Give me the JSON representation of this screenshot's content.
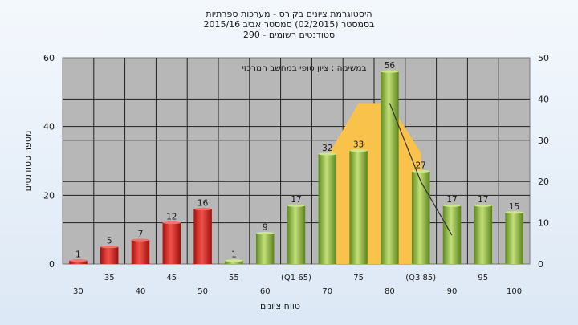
{
  "chart_data": {
    "type": "bar",
    "title": "היסטוגרמת ציונים בקורס - מערכות ספרתיות",
    "subtitle": "בסמסטר (02/2015) סמסטר אביב 2015/16",
    "subtitle2": "סטודנטים רשומים - 290",
    "annotation": "במשימה : ציון סופי במחשב המרכזי",
    "xlabel": "טווח ציונים",
    "ylabel": "מספר סטודנטים",
    "ylim": [
      0,
      60
    ],
    "y_ticks": [
      "0",
      "20",
      "40",
      "60"
    ],
    "y2lim": [
      0,
      50
    ],
    "y2_ticks": [
      "0",
      "10",
      "20",
      "30",
      "40",
      "50"
    ],
    "categories": [
      "30",
      "35",
      "40",
      "45",
      "50",
      "55",
      "60",
      "(Q1 65)",
      "70",
      "75",
      "80",
      "(Q3 85)",
      "90",
      "95",
      "100"
    ],
    "values": [
      1,
      5,
      7,
      12,
      16,
      1,
      9,
      17,
      32,
      33,
      56,
      27,
      17,
      17,
      15
    ],
    "value_labels": [
      "1",
      "5",
      "7",
      "12",
      "16",
      "1",
      "9",
      "17",
      "32",
      "33",
      "56",
      "27",
      "17",
      "17",
      "15"
    ],
    "bar_colors": [
      "red",
      "red",
      "red",
      "red",
      "red",
      "green",
      "green",
      "green",
      "green",
      "green",
      "green",
      "green",
      "green",
      "green",
      "green"
    ],
    "distribution_curve": {
      "x": [
        "70",
        "75",
        "80",
        "(Q3 85)"
      ],
      "y2_values": [
        26,
        39,
        39,
        27
      ]
    },
    "trend_line": {
      "x": [
        "80",
        "(Q3 85)",
        "90"
      ],
      "y2_values": [
        39,
        20,
        7
      ]
    },
    "colors": {
      "red": "#e0302a",
      "green": "#8cb83e",
      "area": "#f9c24a",
      "plot_bg": "#b7b7b7"
    }
  }
}
